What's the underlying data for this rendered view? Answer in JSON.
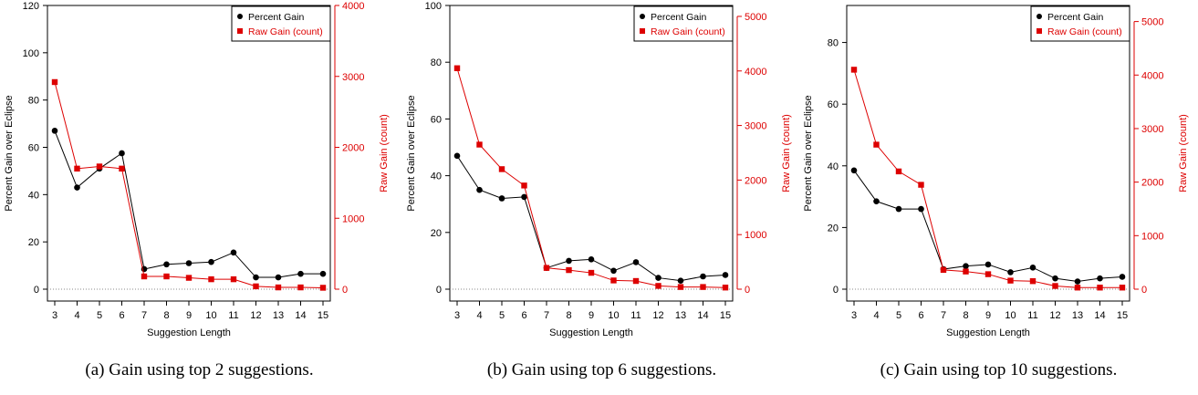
{
  "colors": {
    "percent": "#000000",
    "raw": "#dd0000",
    "zero_line": "#888888"
  },
  "chart_data": [
    {
      "type": "line",
      "caption": "(a) Gain using top 2 suggestions.",
      "xlabel": "Suggestion Length",
      "ylabel_left": "Percent Gain over Eclipse",
      "ylabel_right": "Raw Gain (count)",
      "x": [
        3,
        4,
        5,
        6,
        7,
        8,
        9,
        10,
        11,
        12,
        13,
        14,
        15
      ],
      "ylim_left": [
        0,
        120
      ],
      "yticks_left": [
        0,
        20,
        40,
        60,
        80,
        100,
        120
      ],
      "ylim_right": [
        0,
        4000
      ],
      "yticks_right": [
        0,
        1000,
        2000,
        3000,
        4000
      ],
      "legend_position": "top-right",
      "series": [
        {
          "name": "Percent Gain",
          "axis": "left",
          "marker": "circle",
          "values": [
            67,
            43,
            51,
            57.5,
            8.5,
            10.5,
            11,
            11.5,
            15.5,
            5,
            5,
            6.5,
            6.5
          ]
        },
        {
          "name": "Raw Gain (count)",
          "axis": "right",
          "marker": "square",
          "values": [
            2920,
            1700,
            1730,
            1700,
            180,
            180,
            160,
            140,
            140,
            40,
            25,
            25,
            20
          ]
        }
      ]
    },
    {
      "type": "line",
      "caption": "(b) Gain using top 6 suggestions.",
      "xlabel": "Suggestion Length",
      "ylabel_left": "Percent Gain over Eclipse",
      "ylabel_right": "Raw Gain (count)",
      "x": [
        3,
        4,
        5,
        6,
        7,
        8,
        9,
        10,
        11,
        12,
        13,
        14,
        15
      ],
      "ylim_left": [
        0,
        100
      ],
      "yticks_left": [
        0,
        20,
        40,
        60,
        80,
        100
      ],
      "ylim_right": [
        0,
        5200
      ],
      "yticks_right": [
        0,
        1000,
        2000,
        3000,
        4000,
        5000
      ],
      "legend_position": "top-right",
      "series": [
        {
          "name": "Percent Gain",
          "axis": "left",
          "marker": "circle",
          "values": [
            47,
            35,
            32,
            32.5,
            7.5,
            10,
            10.5,
            6.5,
            9.5,
            4,
            3,
            4.5,
            5
          ]
        },
        {
          "name": "Raw Gain (count)",
          "axis": "right",
          "marker": "square",
          "values": [
            4050,
            2650,
            2200,
            1900,
            390,
            350,
            300,
            160,
            150,
            60,
            40,
            40,
            30
          ]
        }
      ]
    },
    {
      "type": "line",
      "caption": "(c) Gain using top 10 suggestions.",
      "xlabel": "Suggestion Length",
      "ylabel_left": "Percent Gain over Eclipse",
      "ylabel_right": "Raw Gain (count)",
      "x": [
        3,
        4,
        5,
        6,
        7,
        8,
        9,
        10,
        11,
        12,
        13,
        14,
        15
      ],
      "ylim_left": [
        0,
        92
      ],
      "yticks_left": [
        0,
        20,
        40,
        60,
        80
      ],
      "ylim_right": [
        0,
        5300
      ],
      "yticks_right": [
        0,
        1000,
        2000,
        3000,
        4000,
        5000
      ],
      "legend_position": "top-right",
      "series": [
        {
          "name": "Percent Gain",
          "axis": "left",
          "marker": "circle",
          "values": [
            38.5,
            28.5,
            26,
            26,
            6.5,
            7.5,
            8,
            5.5,
            7,
            3.5,
            2.5,
            3.5,
            4
          ]
        },
        {
          "name": "Raw Gain (count)",
          "axis": "right",
          "marker": "square",
          "values": [
            4100,
            2700,
            2200,
            1950,
            360,
            330,
            280,
            160,
            150,
            60,
            30,
            30,
            30
          ]
        }
      ]
    }
  ]
}
